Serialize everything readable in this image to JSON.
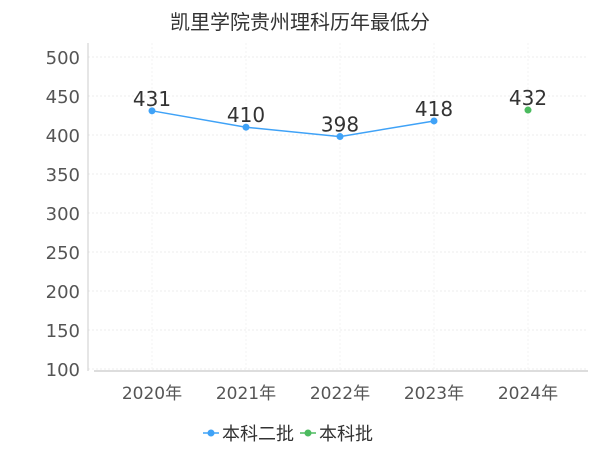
{
  "chart_data": {
    "type": "line",
    "title": "凯里学院贵州理科历年最低分",
    "categories": [
      "2020年",
      "2021年",
      "2022年",
      "2023年",
      "2024年"
    ],
    "series": [
      {
        "name": "本科二批",
        "color": "#3fa2f7",
        "x": [
          "2020年",
          "2021年",
          "2022年",
          "2023年"
        ],
        "values": [
          431,
          410,
          398,
          418
        ]
      },
      {
        "name": "本科批",
        "color": "#4cbb5f",
        "x": [
          "2024年"
        ],
        "values": [
          432
        ]
      }
    ],
    "ylim": [
      100,
      500
    ],
    "yticks": [
      100,
      150,
      200,
      250,
      300,
      350,
      400,
      450,
      500
    ],
    "legend_position": "bottom-center",
    "grid": true
  }
}
